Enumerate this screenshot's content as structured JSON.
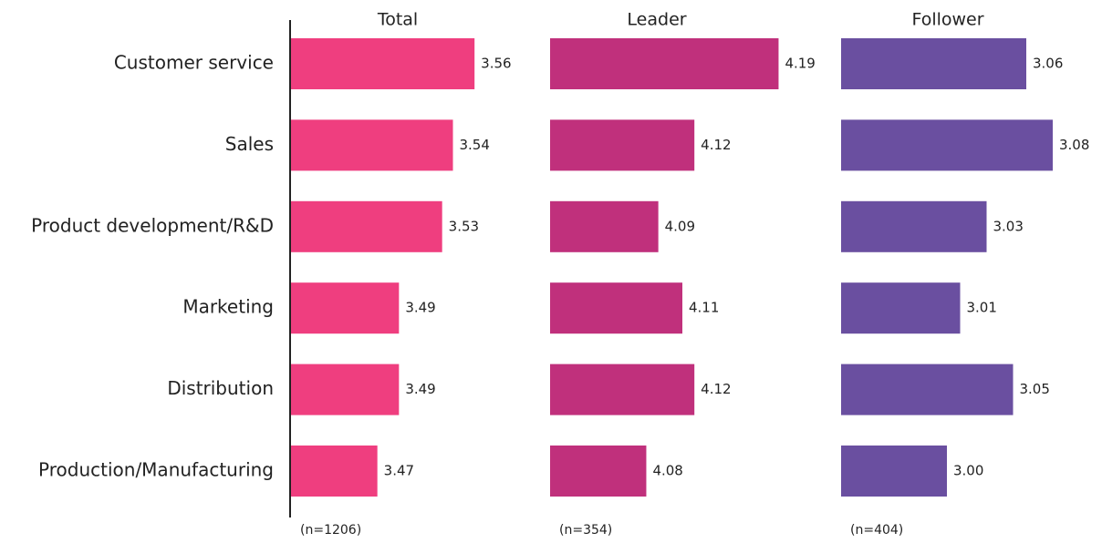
{
  "chart_data": {
    "type": "bar",
    "orientation": "horizontal",
    "categories": [
      "Customer service",
      "Sales",
      "Product development/R&D",
      "Marketing",
      "Distribution",
      "Production/Manufacturing"
    ],
    "series": [
      {
        "name": "Total",
        "sample_size": "(n=1206)",
        "color": "#ef3e7f",
        "xlim": [
          3.39,
          3.63
        ],
        "values": [
          3.56,
          3.54,
          3.53,
          3.49,
          3.49,
          3.47
        ]
      },
      {
        "name": "Leader",
        "sample_size": "(n=354)",
        "color": "#c0307c",
        "xlim": [
          4.0,
          4.22
        ],
        "values": [
          4.19,
          4.12,
          4.09,
          4.11,
          4.12,
          4.08
        ]
      },
      {
        "name": "Follower",
        "sample_size": "(n=404)",
        "color": "#6a4fa0",
        "xlim": [
          2.92,
          3.1
        ],
        "values": [
          3.06,
          3.08,
          3.03,
          3.01,
          3.05,
          3.0
        ],
        "value_labels": [
          "3.06",
          "3.08",
          "3.03",
          "3.01",
          "3.05",
          "3.00"
        ]
      }
    ]
  }
}
